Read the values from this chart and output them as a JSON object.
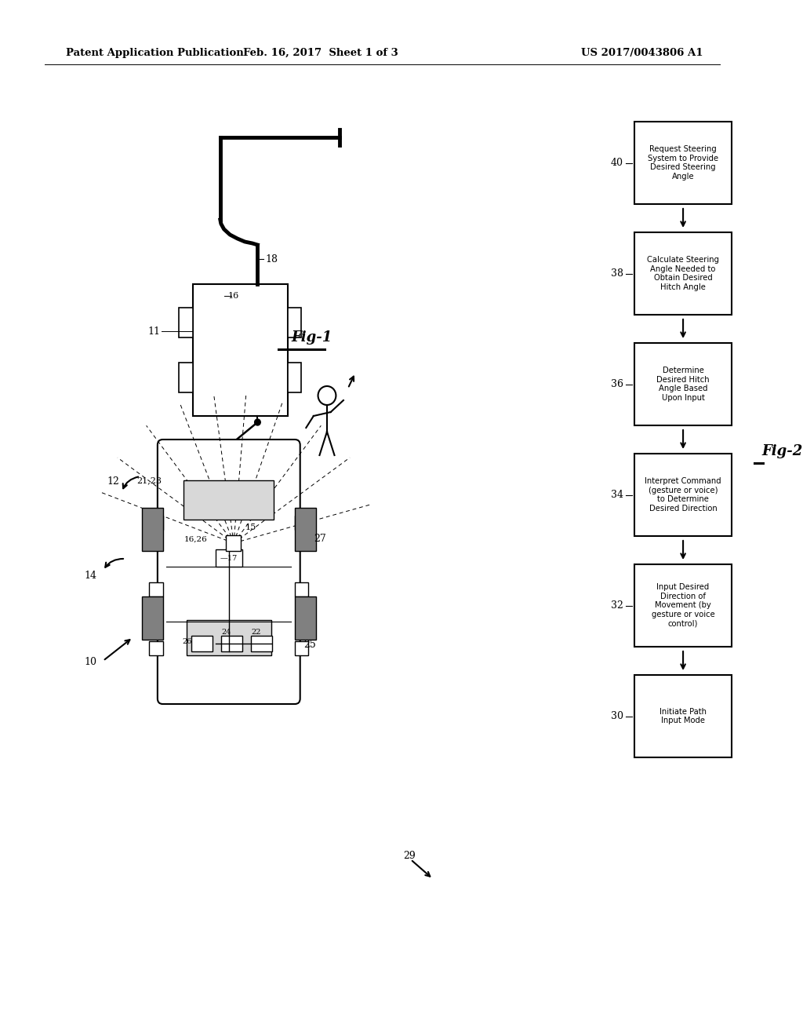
{
  "header_left": "Patent Application Publication",
  "header_mid": "Feb. 16, 2017  Sheet 1 of 3",
  "header_right": "US 2017/0043806 A1",
  "fig1_label": "Fig-1",
  "fig2_label": "Fig-2",
  "flow_box_labels": [
    "Initiate Path\nInput Mode",
    "Input Desired\nDirection of\nMovement (by\ngesture or voice\ncontrol)",
    "Interpret Command\n(gesture or voice)\nto Determine\nDesired Direction",
    "Determine\nDesired Hitch\nAngle Based\nUpon Input",
    "Calculate Steering\nAngle Needed to\nObtain Desired\nHitch Angle",
    "Request Steering\nSystem to Provide\nDesired Steering\nAngle"
  ],
  "flow_box_ids": [
    30,
    32,
    34,
    36,
    38,
    40
  ],
  "background_color": "#ffffff",
  "box_color": "#ffffff",
  "box_edge": "#000000",
  "text_color": "#000000",
  "arrow_color": "#000000"
}
